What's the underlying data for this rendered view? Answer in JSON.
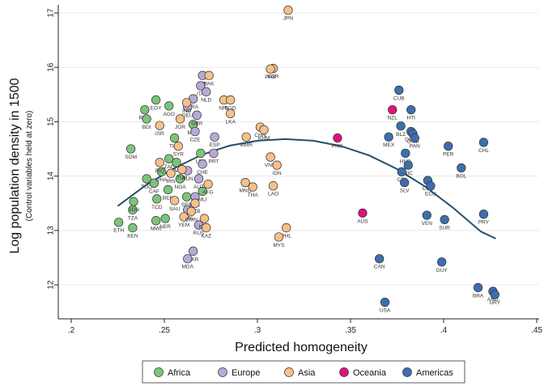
{
  "chart_data": {
    "type": "scatter",
    "xlabel": "Predicted homogeneity",
    "ylabel": "Log population density in 1500",
    "ylabel_sub": "(Control variables held at zero)",
    "xlim": [
      0.2,
      0.45
    ],
    "ylim": [
      11.6,
      17.2
    ],
    "xticks": [
      0.2,
      0.25,
      0.3,
      0.35,
      0.4,
      0.45
    ],
    "xtick_labels": [
      ".2",
      ".25",
      ".3",
      ".35",
      ".4",
      ".45"
    ],
    "yticks": [
      12,
      13,
      14,
      15,
      16,
      17
    ],
    "ytick_labels": [
      "12",
      "13",
      "14",
      "15",
      "16",
      "17"
    ],
    "grid": "horizontal",
    "legend": "bottom",
    "colors": {
      "Africa": "#7cc47a",
      "Europe": "#b9a9d8",
      "Asia": "#f7c08a",
      "Oceania": "#e0117a",
      "Americas": "#3c6eb0",
      "fit": "#244f6e"
    },
    "series": [
      {
        "name": "Africa",
        "points": [
          {
            "x": 0.2395,
            "y": 15.22,
            "label": "RWA"
          },
          {
            "x": 0.2405,
            "y": 15.05,
            "label": "BDI"
          },
          {
            "x": 0.2455,
            "y": 15.4,
            "label": "EGY"
          },
          {
            "x": 0.2525,
            "y": 15.29,
            "label": "AGO"
          },
          {
            "x": 0.232,
            "y": 14.5,
            "label": "SOM"
          },
          {
            "x": 0.2255,
            "y": 13.15,
            "label": "ETH"
          },
          {
            "x": 0.233,
            "y": 13.05,
            "label": "KEN"
          },
          {
            "x": 0.233,
            "y": 13.38,
            "label": "TZA"
          },
          {
            "x": 0.2335,
            "y": 13.53,
            "label": "SDN"
          },
          {
            "x": 0.2455,
            "y": 13.18,
            "label": "MWI"
          },
          {
            "x": 0.2405,
            "y": 13.95,
            "label": "TGO"
          },
          {
            "x": 0.2445,
            "y": 13.87,
            "label": "CAF"
          },
          {
            "x": 0.246,
            "y": 13.58,
            "label": "TCD"
          },
          {
            "x": 0.2485,
            "y": 14.08,
            "label": "GHA"
          },
          {
            "x": 0.2505,
            "y": 13.22,
            "label": "NER"
          },
          {
            "x": 0.252,
            "y": 13.75,
            "label": "BEN"
          },
          {
            "x": 0.2525,
            "y": 14.32,
            "label": "ZAF"
          },
          {
            "x": 0.2555,
            "y": 14.7,
            "label": "TUN"
          },
          {
            "x": 0.2565,
            "y": 14.25,
            "label": "CMR"
          },
          {
            "x": 0.2585,
            "y": 13.95,
            "label": "NGA"
          },
          {
            "x": 0.262,
            "y": 13.62,
            "label": "SEN"
          },
          {
            "x": 0.2655,
            "y": 14.95,
            "label": "MAR"
          },
          {
            "x": 0.2695,
            "y": 14.42,
            "label": "LBY"
          },
          {
            "x": 0.2705,
            "y": 13.72,
            "label": "MLI"
          }
        ]
      },
      {
        "name": "Europe",
        "points": [
          {
            "x": 0.2705,
            "y": 15.85,
            "label": "BEL"
          },
          {
            "x": 0.2695,
            "y": 15.66,
            "label": "ITA"
          },
          {
            "x": 0.2725,
            "y": 15.55,
            "label": "NLD"
          },
          {
            "x": 0.2655,
            "y": 15.42,
            "label": "FRA"
          },
          {
            "x": 0.2625,
            "y": 15.27,
            "label": "DEU"
          },
          {
            "x": 0.2675,
            "y": 15.12,
            "label": "GBR"
          },
          {
            "x": 0.2665,
            "y": 14.82,
            "label": "CZE"
          },
          {
            "x": 0.277,
            "y": 14.72,
            "label": "ESP"
          },
          {
            "x": 0.2765,
            "y": 14.42,
            "label": "PRT"
          },
          {
            "x": 0.2705,
            "y": 14.22,
            "label": "CHE"
          },
          {
            "x": 0.2685,
            "y": 13.95,
            "label": "AUT"
          },
          {
            "x": 0.2625,
            "y": 14.1,
            "label": "HUN"
          },
          {
            "x": 0.2665,
            "y": 13.62,
            "label": "POL"
          },
          {
            "x": 0.2625,
            "y": 13.38,
            "label": "SVK"
          },
          {
            "x": 0.2685,
            "y": 13.1,
            "label": "RUS"
          },
          {
            "x": 0.2655,
            "y": 12.62,
            "label": "UKR"
          },
          {
            "x": 0.2625,
            "y": 12.48,
            "label": "MDA"
          }
        ]
      },
      {
        "name": "Asia",
        "points": [
          {
            "x": 0.3165,
            "y": 17.05,
            "label": "JPN"
          },
          {
            "x": 0.3085,
            "y": 15.98,
            "label": "KOR"
          },
          {
            "x": 0.307,
            "y": 15.97,
            "label": "PRK"
          },
          {
            "x": 0.274,
            "y": 15.85,
            "label": "PAK"
          },
          {
            "x": 0.262,
            "y": 15.35,
            "label": "IND"
          },
          {
            "x": 0.282,
            "y": 15.4,
            "label": "NPL"
          },
          {
            "x": 0.2855,
            "y": 15.4,
            "label": "BGD"
          },
          {
            "x": 0.2855,
            "y": 15.15,
            "label": "LKA"
          },
          {
            "x": 0.2475,
            "y": 14.93,
            "label": "ISR"
          },
          {
            "x": 0.3015,
            "y": 14.9,
            "label": "CHN"
          },
          {
            "x": 0.3035,
            "y": 14.85,
            "label": "KHM"
          },
          {
            "x": 0.294,
            "y": 14.72,
            "label": "MMR"
          },
          {
            "x": 0.307,
            "y": 14.35,
            "label": "VNM"
          },
          {
            "x": 0.3105,
            "y": 14.2,
            "label": "IDN"
          },
          {
            "x": 0.2575,
            "y": 14.55,
            "label": "SYR"
          },
          {
            "x": 0.2475,
            "y": 14.25,
            "label": "IRQ"
          },
          {
            "x": 0.2535,
            "y": 14.05,
            "label": "IRN"
          },
          {
            "x": 0.2595,
            "y": 14.12,
            "label": "TUR"
          },
          {
            "x": 0.2735,
            "y": 13.85,
            "label": "AFG"
          },
          {
            "x": 0.2935,
            "y": 13.88,
            "label": "MNG"
          },
          {
            "x": 0.2975,
            "y": 13.8,
            "label": "THA"
          },
          {
            "x": 0.3085,
            "y": 13.82,
            "label": "LAO"
          },
          {
            "x": 0.2665,
            "y": 13.5,
            "label": "UZB"
          },
          {
            "x": 0.2715,
            "y": 13.22,
            "label": "KGZ"
          },
          {
            "x": 0.2725,
            "y": 13.05,
            "label": "KAZ"
          },
          {
            "x": 0.3155,
            "y": 13.05,
            "label": "PHL"
          },
          {
            "x": 0.3115,
            "y": 12.88,
            "label": "MYS"
          },
          {
            "x": 0.2555,
            "y": 13.55,
            "label": "SAU"
          },
          {
            "x": 0.2605,
            "y": 13.25,
            "label": "YEM"
          },
          {
            "x": 0.2645,
            "y": 13.35,
            "label": "OMN"
          },
          {
            "x": 0.2585,
            "y": 15.05,
            "label": "JOR"
          }
        ]
      },
      {
        "name": "Oceania",
        "points": [
          {
            "x": 0.3725,
            "y": 15.22,
            "label": "NZL"
          },
          {
            "x": 0.343,
            "y": 14.7,
            "label": "PNG"
          },
          {
            "x": 0.3565,
            "y": 13.32,
            "label": "AUS"
          }
        ]
      },
      {
        "name": "Americas",
        "points": [
          {
            "x": 0.376,
            "y": 15.58,
            "label": "CUB"
          },
          {
            "x": 0.3825,
            "y": 15.22,
            "label": "HTI"
          },
          {
            "x": 0.377,
            "y": 14.92,
            "label": "BLZ"
          },
          {
            "x": 0.3705,
            "y": 14.72,
            "label": "MEX"
          },
          {
            "x": 0.3825,
            "y": 14.82,
            "label": "DOM"
          },
          {
            "x": 0.3835,
            "y": 14.78,
            "label": "GTM"
          },
          {
            "x": 0.3845,
            "y": 14.7,
            "label": "PAN"
          },
          {
            "x": 0.3795,
            "y": 14.42,
            "label": "HND"
          },
          {
            "x": 0.381,
            "y": 14.2,
            "label": "NIC"
          },
          {
            "x": 0.3775,
            "y": 14.08,
            "label": "CRI"
          },
          {
            "x": 0.379,
            "y": 13.88,
            "label": "SLV"
          },
          {
            "x": 0.3915,
            "y": 13.92,
            "label": "COL"
          },
          {
            "x": 0.393,
            "y": 13.82,
            "label": "ECU"
          },
          {
            "x": 0.4025,
            "y": 14.55,
            "label": "PER"
          },
          {
            "x": 0.4215,
            "y": 14.62,
            "label": "CHL"
          },
          {
            "x": 0.4095,
            "y": 14.15,
            "label": "BOL"
          },
          {
            "x": 0.391,
            "y": 13.28,
            "label": "VEN"
          },
          {
            "x": 0.4005,
            "y": 13.2,
            "label": "SUR"
          },
          {
            "x": 0.4215,
            "y": 13.3,
            "label": "PRY"
          },
          {
            "x": 0.3655,
            "y": 12.48,
            "label": "CAN"
          },
          {
            "x": 0.399,
            "y": 12.42,
            "label": "GUY"
          },
          {
            "x": 0.3685,
            "y": 11.68,
            "label": "USA"
          },
          {
            "x": 0.4185,
            "y": 11.95,
            "label": "BRA"
          },
          {
            "x": 0.4265,
            "y": 11.88,
            "label": "ARG"
          },
          {
            "x": 0.4275,
            "y": 11.82,
            "label": "URY"
          }
        ]
      }
    ],
    "fit": {
      "type": "quadratic",
      "x": [
        0.225,
        0.24,
        0.255,
        0.27,
        0.285,
        0.3,
        0.315,
        0.33,
        0.345,
        0.36,
        0.375,
        0.39,
        0.405,
        0.42,
        0.428
      ],
      "y": [
        13.45,
        13.83,
        14.14,
        14.39,
        14.56,
        14.65,
        14.68,
        14.65,
        14.55,
        14.38,
        14.13,
        13.81,
        13.42,
        12.98,
        12.85
      ]
    }
  }
}
